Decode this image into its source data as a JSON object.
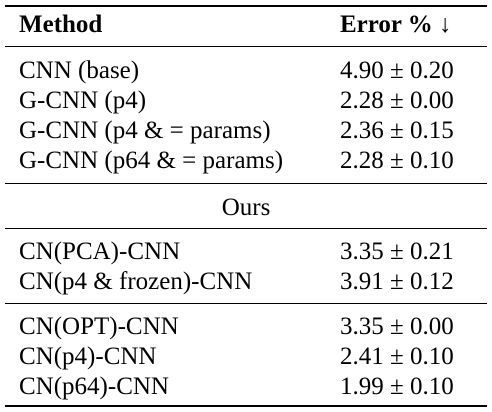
{
  "table": {
    "headers": {
      "method": "Method",
      "error": "Error % ↓"
    },
    "baselines": [
      {
        "method": "CNN (base)",
        "error": "4.90 ± 0.20"
      },
      {
        "method": "G-CNN (p4)",
        "error": "2.28 ± 0.00"
      },
      {
        "method": "G-CNN (p4 & = params)",
        "error": "2.36 ± 0.15"
      },
      {
        "method": "G-CNN (p64 & = params)",
        "error": "2.28 ± 0.10"
      }
    ],
    "section_label": "Ours",
    "ours_group1": [
      {
        "method": "CN(PCA)-CNN",
        "error": "3.35 ± 0.21"
      },
      {
        "method": "CN(p4 & frozen)-CNN",
        "error": "3.91 ± 0.12"
      }
    ],
    "ours_group2": [
      {
        "method": "CN(OPT)-CNN",
        "error": "3.35 ± 0.00"
      },
      {
        "method": "CN(p4)-CNN",
        "error": "2.41 ± 0.10"
      },
      {
        "method": "CN(p64)-CNN",
        "error": "1.99 ± 0.10"
      }
    ]
  }
}
